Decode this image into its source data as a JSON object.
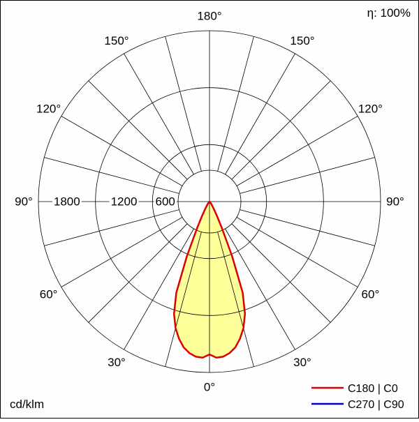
{
  "chart_data": {
    "type": "line",
    "coordinate_system": "polar",
    "efficiency_label": "η: 100%",
    "radial_unit": "cd/klm",
    "radial_max": 1800,
    "radial_ticks": [
      600,
      1200,
      1800
    ],
    "spoke_step_deg": 15,
    "angle_ticks": [
      {
        "value": 0,
        "label": "0°"
      },
      {
        "value": 30,
        "label": "30°"
      },
      {
        "value": 60,
        "label": "60°"
      },
      {
        "value": 90,
        "label": "90°"
      },
      {
        "value": 120,
        "label": "120°"
      },
      {
        "value": 150,
        "label": "150°"
      },
      {
        "value": 180,
        "label": "180°"
      }
    ],
    "series": [
      {
        "name": "C180 | C0",
        "color": "#dd0000",
        "fill_color": "#ffff99",
        "symmetric": true,
        "gamma_deg": [
          0,
          2.5,
          5,
          7.5,
          10,
          12.5,
          15,
          17.5,
          20,
          22.5,
          25,
          27.5,
          30,
          32.5,
          35,
          37.5,
          40,
          42.5,
          45,
          47.5,
          50,
          52.5,
          55
        ],
        "values_cd_klm": [
          1610,
          1645,
          1640,
          1610,
          1560,
          1480,
          1380,
          1240,
          1020,
          620,
          310,
          165,
          92,
          60,
          40,
          27,
          18,
          12,
          8,
          5,
          3,
          1,
          0
        ]
      },
      {
        "name": "C270 | C90",
        "color": "#0000cc",
        "visible_curve": false
      }
    ]
  },
  "legend": {
    "items": [
      {
        "label": "C180 | C0",
        "color": "#dd0000"
      },
      {
        "label": "C270 | C90",
        "color": "#0000cc"
      }
    ]
  }
}
